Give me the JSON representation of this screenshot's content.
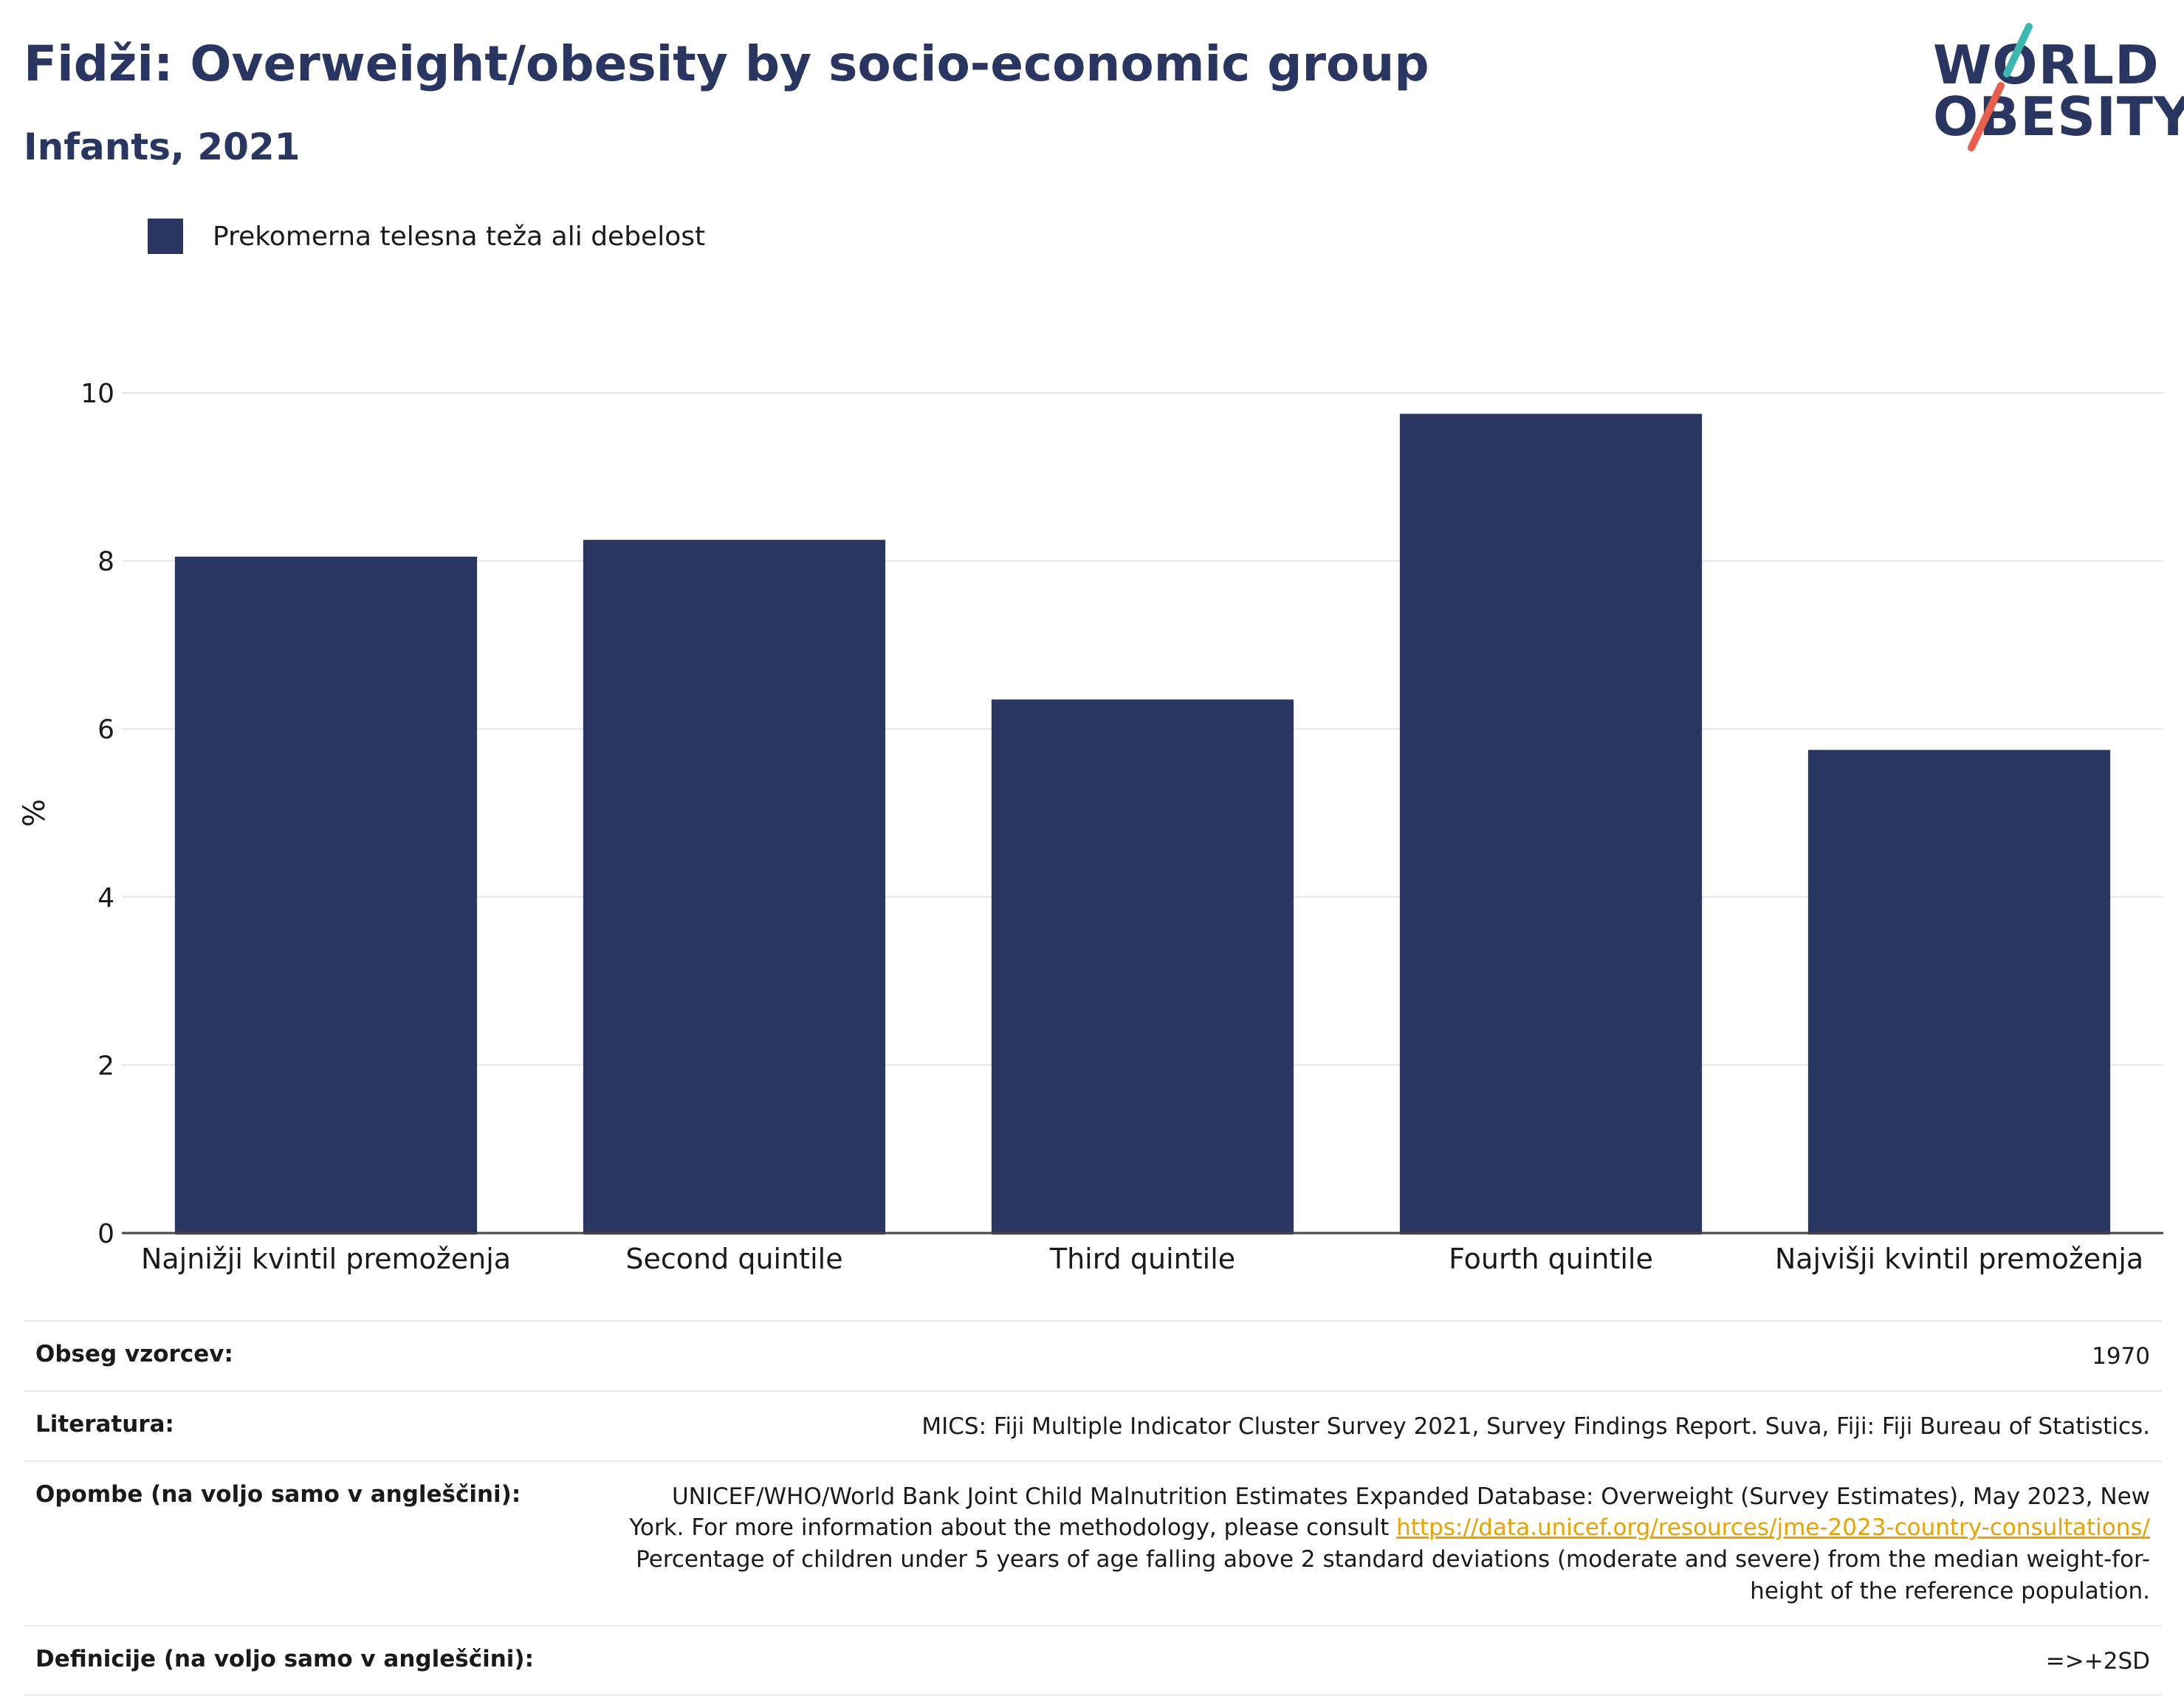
{
  "header": {
    "title": "Fidži: Overweight/obesity by socio-economic group",
    "subtitle": "Infants, 2021"
  },
  "logo": {
    "line1": "WORLD",
    "line2": "OBESITY",
    "accent_colors": [
      "#3ab8b0",
      "#e8604c"
    ]
  },
  "legend": {
    "label": "Prekomerna telesna teža ali debelost",
    "color": "#2a3662"
  },
  "chart_data": {
    "type": "bar",
    "categories": [
      "Najnižji kvintil premoženja",
      "Second quintile",
      "Third quintile",
      "Fourth quintile",
      "Najvišji kvintil premoženja"
    ],
    "series": [
      {
        "name": "Prekomerna telesna teža ali debelost",
        "values": [
          8.05,
          8.25,
          6.35,
          9.75,
          5.75
        ],
        "color": "#2a3662"
      }
    ],
    "ylabel": "%",
    "ylim": [
      0,
      10
    ],
    "yticks": [
      0,
      2,
      4,
      6,
      8,
      10
    ],
    "grid": true,
    "legend_position": "top-left"
  },
  "meta": {
    "sample_label": "Obseg vzorcev:",
    "sample_value": "1970",
    "literature_label": "Literatura:",
    "literature_value": "MICS: Fiji Multiple Indicator Cluster Survey 2021, Survey Findings Report. Suva, Fiji: Fiji Bureau of Statistics.",
    "notes_label": "Opombe (na voljo samo v angleščini):",
    "notes_line1": "UNICEF/WHO/World Bank Joint Child Malnutrition Estimates Expanded Database: Overweight (Survey Estimates), May 2023, New",
    "notes_line2_prefix": "York. For more information about the methodology, please consult ",
    "notes_link": "https://data.unicef.org/resources/jme-2023-country-consultations/",
    "notes_line3": "Percentage of children under 5 years of age falling above 2 standard deviations (moderate and severe) from the median weight-for-",
    "notes_line4": "height of the reference population.",
    "definitions_label": "Definicije (na voljo samo v angleščini):",
    "definitions_value": "=>+2SD"
  }
}
